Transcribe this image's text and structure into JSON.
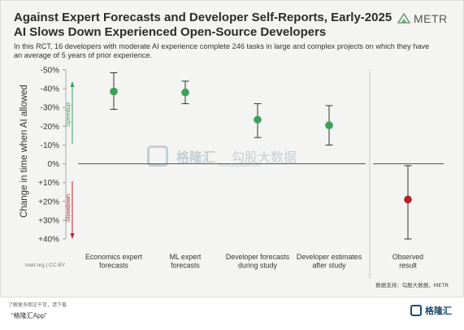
{
  "header": {
    "title_line1": "Against Expert Forecasts and Developer Self-Reports, Early-2025",
    "title_line2": "AI Slows Down Experienced Open-Source Developers",
    "subtitle": "In this RCT, 16 developers with moderate AI experience complete 246 tasks in large and complex projects on which they have an average of 5 years of prior experience.",
    "logo_text": "METR"
  },
  "chart_data": {
    "type": "scatter",
    "ylabel": "Change in time when AI allowed",
    "y_axis_inverted": true,
    "ylim": [
      -50,
      40
    ],
    "yticks": [
      -50,
      -40,
      -30,
      -20,
      -10,
      0,
      10,
      20,
      30,
      40
    ],
    "ytick_labels": [
      "-50%",
      "-40%",
      "-30%",
      "-20%",
      "-10%",
      "0%",
      "+10%",
      "+20%",
      "+30%",
      "+40%"
    ],
    "speedup_label": "Speedup",
    "slowdown_label": "Slowdown",
    "categories": [
      [
        "Economics expert",
        "forecasts"
      ],
      [
        "ML expert",
        "forecasts"
      ],
      [
        "Developer forecasts",
        "during study"
      ],
      [
        "Developer estimates",
        "after study"
      ],
      [
        "Observed",
        "result"
      ]
    ],
    "values": [
      -38.5,
      -38,
      -23.5,
      -20.5,
      19
    ],
    "err_low": [
      -48.5,
      -44,
      -32,
      -31,
      40
    ],
    "err_high": [
      -29,
      -32,
      -14,
      -10,
      1
    ],
    "point_colors": [
      "#3fa05a",
      "#3fa05a",
      "#3fa05a",
      "#3fa05a",
      "#b4232a"
    ],
    "credit": "metr.org | CC-BY",
    "source_note": "数据支持：勾股大数据，METR"
  },
  "watermark": {
    "text1": "格隆汇",
    "text2": "勾股大数据",
    "url": "www.gogudata.com"
  },
  "footer": {
    "more_text": "了解更多图文干货，请下载",
    "app_text": "“格隆汇App”",
    "logo_text": "格隆汇"
  },
  "colors": {
    "speedup": "#3fa05a",
    "slowdown": "#b4232a",
    "zero_line": "#555555",
    "error_bar": "#333333"
  }
}
